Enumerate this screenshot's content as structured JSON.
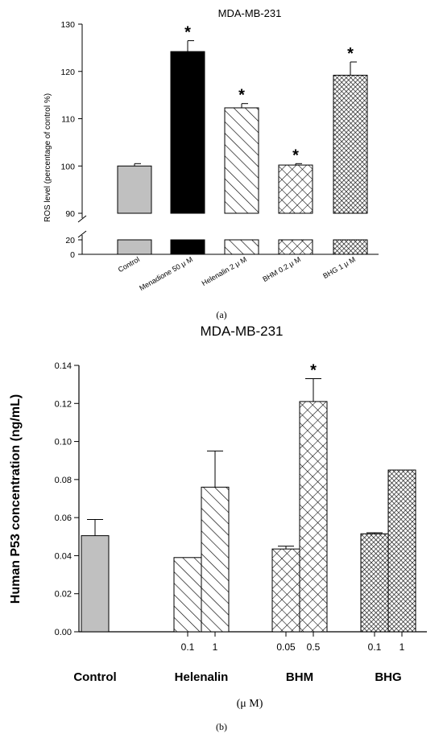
{
  "chart_data": [
    {
      "type": "bar",
      "panel_label": "(a)",
      "title": "MDA-MB-231",
      "ylabel": "ROS level (percentage of control %)",
      "categories": [
        "Control",
        "Menadione 50 μ M",
        "Helenalin 2 μ M",
        "BHM 0.2 μ M",
        "BHG 1 μ M"
      ],
      "values": [
        100,
        124.2,
        112.3,
        100.2,
        119.2
      ],
      "errors": [
        0.5,
        2.3,
        0.9,
        0.3,
        2.8
      ],
      "significant": [
        false,
        true,
        true,
        true,
        true
      ],
      "significance_marker": "*",
      "axis_break": {
        "lower": [
          0,
          20
        ],
        "upper": [
          90,
          130
        ]
      },
      "yticks_upper": [
        "90",
        "100",
        "110",
        "120",
        "130"
      ],
      "yticks_lower": [
        "0",
        "20"
      ],
      "fills": [
        "solid-gray",
        "solid-black",
        "diagonal-hatch",
        "crosshatch",
        "dense-crosshatch"
      ],
      "grid": false
    },
    {
      "type": "bar",
      "panel_label": "(b)",
      "title": "MDA-MB-231",
      "ylabel": "Human P53 concentration (ng/mL)",
      "xlabel": "(μ M)",
      "groups": [
        "Control",
        "Helenalin",
        "BHM",
        "BHG"
      ],
      "series": [
        {
          "group": "Control",
          "dose": "",
          "value": 0.0505,
          "error": 0.0085,
          "significant": false,
          "fill": "solid-gray"
        },
        {
          "group": "Helenalin",
          "dose": "0.1",
          "value": 0.039,
          "error": 0,
          "significant": false,
          "fill": "diagonal-hatch"
        },
        {
          "group": "Helenalin",
          "dose": "1",
          "value": 0.076,
          "error": 0.019,
          "significant": false,
          "fill": "diagonal-hatch"
        },
        {
          "group": "BHM",
          "dose": "0.05",
          "value": 0.0435,
          "error": 0.0015,
          "significant": false,
          "fill": "crosshatch"
        },
        {
          "group": "BHM",
          "dose": "0.5",
          "value": 0.121,
          "error": 0.012,
          "significant": true,
          "fill": "crosshatch"
        },
        {
          "group": "BHG",
          "dose": "0.1",
          "value": 0.0515,
          "error": 0.0005,
          "significant": false,
          "fill": "dense-crosshatch"
        },
        {
          "group": "BHG",
          "dose": "1",
          "value": 0.085,
          "error": 0,
          "significant": false,
          "fill": "dense-crosshatch"
        }
      ],
      "significance_marker": "*",
      "ylim": [
        0,
        0.14
      ],
      "yticks": [
        "0.00",
        "0.02",
        "0.04",
        "0.06",
        "0.08",
        "0.10",
        "0.12",
        "0.14"
      ],
      "grid": false
    }
  ]
}
